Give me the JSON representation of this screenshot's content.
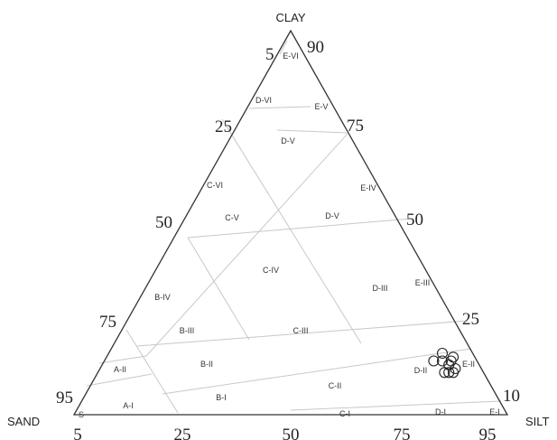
{
  "vertices": {
    "top": "CLAY",
    "left": "SAND",
    "right": "SILT"
  },
  "left_edge_ticks": [
    "5",
    "25",
    "50",
    "75",
    "95"
  ],
  "right_edge_ticks": [
    "90",
    "75",
    "50",
    "25",
    "10"
  ],
  "bottom_edge_ticks": [
    "5",
    "25",
    "50",
    "75",
    "95"
  ],
  "zones": [
    "E-VI",
    "D-VI",
    "E-V",
    "D-V",
    "E-IV",
    "C-VI",
    "C-V",
    "D-V",
    "C-IV",
    "D-III",
    "E-III",
    "B-IV",
    "B-III",
    "C-III",
    "B-II",
    "A-II",
    "D-II",
    "E-II",
    "B-I",
    "C-II",
    "A-I",
    "S",
    "C-I",
    "D-I",
    "E-I"
  ],
  "colors": {
    "outline": "#333333",
    "grid": "#c8c8c8",
    "sample": "#222222"
  },
  "samples": [
    {
      "sand": 10,
      "silt": 76,
      "clay": 14
    },
    {
      "sand": 8,
      "silt": 78,
      "clay": 14
    },
    {
      "sand": 7,
      "silt": 80,
      "clay": 13
    },
    {
      "sand": 6,
      "silt": 80,
      "clay": 14
    },
    {
      "sand": 7,
      "silt": 77,
      "clay": 16
    },
    {
      "sand": 5,
      "silt": 80,
      "clay": 15
    },
    {
      "sand": 8,
      "silt": 81,
      "clay": 11
    },
    {
      "sand": 9,
      "silt": 80,
      "clay": 11
    },
    {
      "sand": 7,
      "silt": 82,
      "clay": 11
    },
    {
      "sand": 6,
      "silt": 82,
      "clay": 12
    }
  ]
}
